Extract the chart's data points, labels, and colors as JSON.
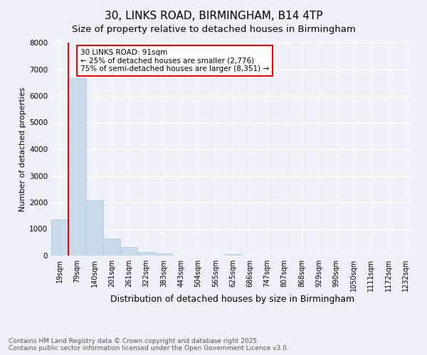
{
  "title": "30, LINKS ROAD, BIRMINGHAM, B14 4TP",
  "subtitle": "Size of property relative to detached houses in Birmingham",
  "xlabel": "Distribution of detached houses by size in Birmingham",
  "ylabel": "Number of detached properties",
  "categories": [
    "19sqm",
    "79sqm",
    "140sqm",
    "201sqm",
    "261sqm",
    "322sqm",
    "383sqm",
    "443sqm",
    "504sqm",
    "565sqm",
    "625sqm",
    "686sqm",
    "747sqm",
    "807sqm",
    "868sqm",
    "929sqm",
    "990sqm",
    "1050sqm",
    "1111sqm",
    "1172sqm",
    "1232sqm"
  ],
  "values": [
    1350,
    6680,
    2090,
    630,
    310,
    140,
    70,
    0,
    0,
    0,
    50,
    0,
    0,
    0,
    0,
    0,
    0,
    0,
    0,
    0,
    0
  ],
  "bar_color": "#c9daea",
  "bar_edge_color": "#a8c4d8",
  "red_line_index": 1,
  "annotation_text": "30 LINKS ROAD: 91sqm\n← 25% of detached houses are smaller (2,776)\n75% of semi-detached houses are larger (8,351) →",
  "annotation_box_color": "white",
  "annotation_box_edge_color": "red",
  "red_line_color": "red",
  "ylim": [
    0,
    8000
  ],
  "yticks": [
    0,
    1000,
    2000,
    3000,
    4000,
    5000,
    6000,
    7000,
    8000
  ],
  "background_color": "#eef2f8",
  "grid_color": "white",
  "footer_text": "Contains HM Land Registry data © Crown copyright and database right 2025.\nContains public sector information licensed under the Open Government Licence v3.0.",
  "title_fontsize": 11,
  "subtitle_fontsize": 9.5,
  "xlabel_fontsize": 9,
  "ylabel_fontsize": 8,
  "tick_fontsize": 7,
  "annotation_fontsize": 7.5,
  "footer_fontsize": 6.5
}
